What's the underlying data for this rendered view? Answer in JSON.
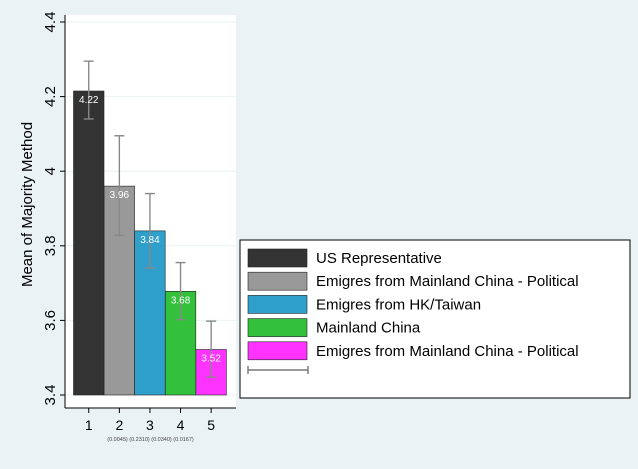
{
  "chart_data": {
    "type": "bar",
    "ylabel": "Mean of Majority Method",
    "ylim": [
      3.4,
      4.4
    ],
    "yticks": [
      3.4,
      3.6,
      3.8,
      4,
      4.2,
      4.4
    ],
    "categories": [
      "1",
      "2",
      "3",
      "4",
      "5"
    ],
    "bars": [
      {
        "value": 4.215,
        "label": "4.22",
        "ci": [
          4.14,
          4.295
        ],
        "color": "#333333"
      },
      {
        "value": 3.96,
        "label": "3.96",
        "ci": [
          3.828,
          4.095
        ],
        "color": "#999999"
      },
      {
        "value": 3.84,
        "label": "3.84",
        "ci": [
          3.74,
          3.94
        ],
        "color": "#2f9fcc"
      },
      {
        "value": 3.678,
        "label": "3.68",
        "ci": [
          3.602,
          3.755
        ],
        "color": "#33c13c"
      },
      {
        "value": 3.522,
        "label": "3.52",
        "ci": [
          3.448,
          3.598
        ],
        "color": "#ff33ff"
      }
    ],
    "x_sublabels": "(0.0045) (0.2310) (0.0340) (0.0167)",
    "legend": {
      "position": "right",
      "entries": [
        {
          "label": "US Representative",
          "color": "#333333"
        },
        {
          "label": "Emigres from Mainland China - Political",
          "color": "#999999"
        },
        {
          "label": "Emigres from HK/Taiwan",
          "color": "#2f9fcc"
        },
        {
          "label": "Mainland China",
          "color": "#33c13c"
        },
        {
          "label": "Emigres from Mainland China - Political",
          "color": "#ff33ff"
        }
      ],
      "ci_entry_label": ""
    },
    "grid": true
  }
}
